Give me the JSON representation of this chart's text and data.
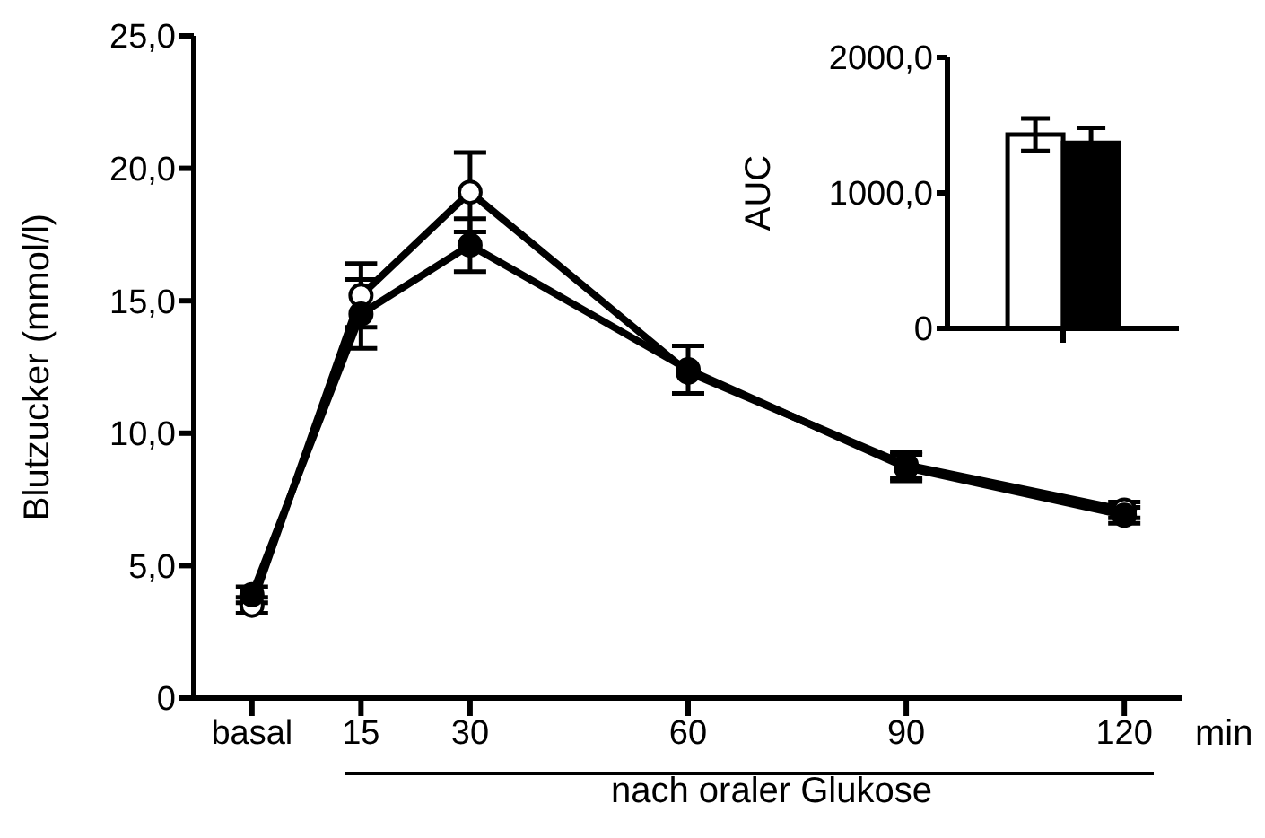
{
  "chart_data": [
    {
      "type": "line",
      "ylabel": "Blutzucker (mmol/l)",
      "xlabel": "nach oraler Glukose",
      "annotations": [
        "min"
      ],
      "marker": "circle",
      "x": [
        0,
        15,
        30,
        60,
        90,
        120
      ],
      "xlim": [
        -8,
        128
      ],
      "xticks": [
        {
          "value": 0,
          "label": "basal"
        },
        15,
        30,
        60,
        90,
        120
      ],
      "ylim": [
        0,
        25
      ],
      "yticks": [
        0,
        {
          "value": 5,
          "label": "5,0"
        },
        {
          "value": 10,
          "label": "10,0"
        },
        {
          "value": 15,
          "label": "15,0"
        },
        {
          "value": 20,
          "label": "20,0"
        },
        {
          "value": 25,
          "label": "25,0"
        }
      ],
      "series": [
        {
          "color": "#ffffff",
          "values": [
            3.5,
            15.2,
            19.1,
            12.3,
            8.8,
            7.1
          ],
          "errors": [
            0.3,
            1.2,
            1.5,
            null,
            0.5,
            0.3
          ]
        },
        {
          "color": "#000000",
          "values": [
            3.9,
            14.5,
            17.1,
            12.4,
            8.7,
            6.9
          ],
          "errors": [
            0.3,
            1.3,
            1.0,
            0.9,
            0.5,
            0.3
          ]
        }
      ]
    },
    {
      "type": "bar",
      "ylabel": "AUC",
      "categories": [
        null
      ],
      "ylim": [
        0,
        2000
      ],
      "yticks": [
        0,
        {
          "value": 1000,
          "label": "1000,0"
        },
        {
          "value": 2000,
          "label": "2000,0"
        }
      ],
      "series": [
        {
          "color": "#ffffff",
          "values": [
            1430
          ],
          "errors": [
            120
          ]
        },
        {
          "color": "#000000",
          "values": [
            1370
          ],
          "errors": [
            110
          ]
        }
      ]
    }
  ]
}
